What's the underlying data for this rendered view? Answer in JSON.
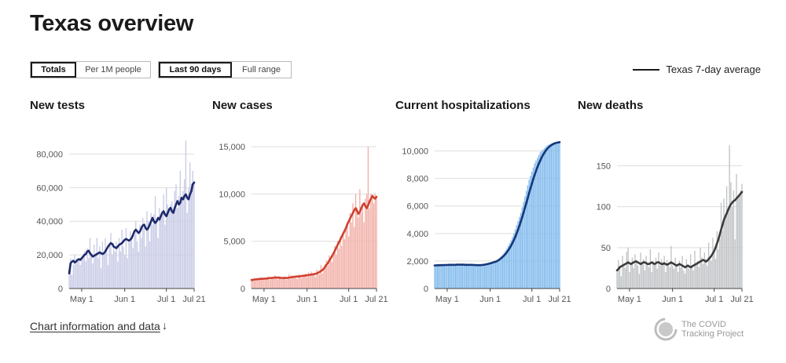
{
  "page": {
    "title": "Texas overview"
  },
  "toggles": {
    "totals": "Totals",
    "per_million": "Per 1M people",
    "last_90": "Last 90 days",
    "full_range": "Full range"
  },
  "legend": {
    "label": "Texas 7-day average",
    "color": "#1a1a1a"
  },
  "footer": {
    "link": "Chart information and data",
    "arrow": "↓"
  },
  "logo": {
    "line1": "The COVID",
    "line2": "Tracking Project"
  },
  "chart_data": [
    {
      "type": "bar",
      "title": "New tests",
      "x_start": "2020-04-22",
      "x_end": "2020-07-21",
      "x_ticks": [
        "May 1",
        "Jun 1",
        "Jul 1",
        "Jul 21"
      ],
      "ylim": [
        0,
        90000
      ],
      "y_ticks": [
        0,
        20000,
        40000,
        60000,
        80000
      ],
      "y_tick_labels": [
        "0",
        "20,000",
        "40,000",
        "60,000",
        "80,000"
      ],
      "bar_color": "#c9cbe6",
      "line_color": "#1f2a6b",
      "grid": true,
      "series": [
        {
          "kind": "daily",
          "values": [
            10000,
            18000,
            8000,
            14000,
            20000,
            15000,
            16000,
            18000,
            14000,
            17000,
            19000,
            22000,
            16000,
            24000,
            18000,
            30000,
            20000,
            15000,
            26000,
            20000,
            30000,
            18000,
            25000,
            12000,
            28000,
            22000,
            30000,
            24000,
            14000,
            26000,
            33000,
            20000,
            27000,
            22000,
            28000,
            16000,
            30000,
            22000,
            35000,
            25000,
            20000,
            36000,
            18000,
            28000,
            34000,
            30000,
            24000,
            32000,
            40000,
            28000,
            22000,
            38000,
            30000,
            42000,
            36000,
            25000,
            46000,
            40000,
            28000,
            45000,
            38000,
            44000,
            55000,
            40000,
            30000,
            48000,
            42000,
            45000,
            56000,
            38000,
            60000,
            50000,
            46000,
            50000,
            52000,
            45000,
            58000,
            62000,
            48000,
            55000,
            70000,
            52000,
            58000,
            65000,
            88000,
            45000,
            60000,
            75000,
            62000,
            70000,
            64000
          ]
        },
        {
          "kind": "7-day average",
          "values": [
            9000,
            15000,
            16000,
            16500,
            15500,
            16000,
            17000,
            17500,
            17000,
            18000,
            19000,
            20000,
            20500,
            22000,
            22500,
            21000,
            20000,
            19000,
            19500,
            20000,
            20500,
            21000,
            21500,
            21000,
            20500,
            21000,
            22000,
            23500,
            25000,
            26000,
            27000,
            26500,
            25000,
            24500,
            24000,
            25000,
            26000,
            26500,
            27000,
            28000,
            29000,
            29500,
            29000,
            28500,
            29000,
            30000,
            32000,
            34000,
            35000,
            34000,
            33000,
            34000,
            36000,
            37500,
            38000,
            36000,
            35000,
            36000,
            38000,
            40000,
            42000,
            40000,
            39000,
            40000,
            42000,
            41000,
            43000,
            45000,
            46000,
            44000,
            43000,
            45000,
            47000,
            48000,
            46000,
            45000,
            48000,
            50000,
            52000,
            50000,
            51000,
            54000,
            53000,
            55000,
            56000,
            54000,
            53000,
            56000,
            58000,
            62000,
            63000
          ]
        }
      ]
    },
    {
      "type": "bar",
      "title": "New cases",
      "x_start": "2020-04-22",
      "x_end": "2020-07-21",
      "x_ticks": [
        "May 1",
        "Jun 1",
        "Jul 1",
        "Jul 21"
      ],
      "ylim": [
        0,
        16000
      ],
      "y_ticks": [
        0,
        5000,
        10000,
        15000
      ],
      "y_tick_labels": [
        "0",
        "5,000",
        "10,000",
        "15,000"
      ],
      "bar_color": "#f2b0a8",
      "line_color": "#d0402f",
      "grid": true,
      "series": [
        {
          "kind": "daily",
          "values": [
            900,
            950,
            1100,
            800,
            1000,
            1050,
            900,
            1200,
            1000,
            1100,
            950,
            1000,
            1300,
            900,
            1100,
            1200,
            1000,
            1400,
            1100,
            950,
            1300,
            1200,
            1000,
            1100,
            1300,
            900,
            1200,
            1500,
            1000,
            1400,
            1300,
            1100,
            1200,
            1000,
            1500,
            1200,
            1100,
            1300,
            1400,
            1600,
            1200,
            1700,
            1300,
            1800,
            1400,
            1500,
            1200,
            2000,
            1700,
            1500,
            2500,
            1600,
            2200,
            2600,
            3000,
            2400,
            3500,
            3200,
            2800,
            3800,
            4500,
            3600,
            5000,
            4200,
            5500,
            4500,
            6000,
            5200,
            6500,
            7000,
            5500,
            8000,
            7000,
            9000,
            6500,
            10000,
            8500,
            7500,
            10500,
            8000,
            9000,
            7000,
            9500,
            10000,
            15000,
            8500,
            10000,
            9500,
            9000,
            10000,
            9800
          ]
        },
        {
          "kind": "7-day average",
          "values": [
            900,
            920,
            950,
            960,
            980,
            1000,
            1010,
            1020,
            1030,
            1040,
            1050,
            1060,
            1080,
            1100,
            1120,
            1130,
            1140,
            1150,
            1160,
            1150,
            1140,
            1130,
            1120,
            1110,
            1100,
            1110,
            1120,
            1150,
            1180,
            1200,
            1220,
            1240,
            1260,
            1270,
            1280,
            1300,
            1320,
            1340,
            1360,
            1380,
            1400,
            1420,
            1450,
            1470,
            1500,
            1520,
            1550,
            1600,
            1680,
            1750,
            1850,
            1950,
            2100,
            2300,
            2500,
            2700,
            2950,
            3200,
            3450,
            3700,
            4000,
            4300,
            4600,
            4900,
            5200,
            5500,
            5800,
            6100,
            6400,
            6800,
            7100,
            7400,
            7700,
            8000,
            8300,
            8500,
            8200,
            7900,
            8100,
            8500,
            8800,
            9000,
            8700,
            8500,
            8800,
            9200,
            9500,
            9800,
            9600,
            9500,
            9700
          ]
        }
      ]
    },
    {
      "type": "bar",
      "title": "Current hospitalizations",
      "x_start": "2020-04-22",
      "x_end": "2020-07-21",
      "x_ticks": [
        "May 1",
        "Jun 1",
        "Jul 1",
        "Jul 21"
      ],
      "ylim": [
        0,
        11000
      ],
      "y_ticks": [
        0,
        2000,
        4000,
        6000,
        8000,
        10000
      ],
      "y_tick_labels": [
        "0",
        "2,000",
        "4,000",
        "6,000",
        "8,000",
        "10,000"
      ],
      "bar_color": "#7fb9ec",
      "line_color": "#15367a",
      "grid": true,
      "series": [
        {
          "kind": "daily",
          "values": [
            1700,
            1650,
            1680,
            1700,
            1720,
            1680,
            1700,
            1750,
            1720,
            1700,
            1730,
            1760,
            1740,
            1720,
            1700,
            1730,
            1750,
            1780,
            1760,
            1740,
            1720,
            1700,
            1680,
            1710,
            1740,
            1760,
            1750,
            1730,
            1710,
            1700,
            1690,
            1680,
            1700,
            1720,
            1740,
            1760,
            1780,
            1800,
            1820,
            1850,
            1880,
            1920,
            1950,
            1980,
            2000,
            2050,
            2150,
            2250,
            2350,
            2450,
            2600,
            2750,
            2900,
            3100,
            3300,
            3500,
            3750,
            4000,
            4300,
            4600,
            4900,
            5200,
            5500,
            5900,
            6300,
            6700,
            7100,
            7500,
            7900,
            8200,
            8500,
            8800,
            9100,
            9300,
            9500,
            9700,
            9900,
            10000,
            10100,
            10200,
            10300,
            10400,
            10450,
            10500,
            10550,
            10600,
            10620,
            10640,
            10650,
            10660,
            10700
          ]
        },
        {
          "kind": "7-day average",
          "values": [
            1680,
            1680,
            1690,
            1690,
            1700,
            1700,
            1700,
            1710,
            1710,
            1710,
            1720,
            1720,
            1720,
            1720,
            1720,
            1720,
            1730,
            1730,
            1730,
            1730,
            1730,
            1730,
            1720,
            1720,
            1720,
            1720,
            1720,
            1720,
            1710,
            1710,
            1700,
            1700,
            1700,
            1700,
            1710,
            1720,
            1740,
            1760,
            1780,
            1800,
            1830,
            1860,
            1890,
            1920,
            1950,
            2000,
            2060,
            2130,
            2210,
            2300,
            2400,
            2510,
            2640,
            2780,
            2940,
            3110,
            3300,
            3510,
            3740,
            3990,
            4260,
            4550,
            4860,
            5180,
            5510,
            5860,
            6210,
            6570,
            6930,
            7280,
            7620,
            7950,
            8260,
            8550,
            8820,
            9070,
            9300,
            9510,
            9700,
            9870,
            10020,
            10150,
            10260,
            10350,
            10420,
            10480,
            10530,
            10570,
            10600,
            10620,
            10640
          ]
        }
      ]
    },
    {
      "type": "bar",
      "title": "New deaths",
      "x_start": "2020-04-22",
      "x_end": "2020-07-21",
      "x_ticks": [
        "May 1",
        "Jun 1",
        "Jul 1",
        "Jul 21"
      ],
      "ylim": [
        0,
        185
      ],
      "y_ticks": [
        0,
        50,
        100,
        150
      ],
      "y_tick_labels": [
        "0",
        "50",
        "100",
        "150"
      ],
      "bar_color": "#c0c3c6",
      "line_color": "#3b3b3b",
      "grid": true,
      "series": [
        {
          "kind": "daily",
          "values": [
            20,
            35,
            28,
            15,
            40,
            30,
            25,
            45,
            50,
            20,
            30,
            38,
            25,
            42,
            35,
            28,
            18,
            44,
            30,
            36,
            22,
            40,
            32,
            26,
            48,
            20,
            34,
            30,
            38,
            24,
            44,
            28,
            36,
            32,
            40,
            20,
            35,
            30,
            26,
            52,
            28,
            24,
            38,
            30,
            20,
            34,
            26,
            40,
            22,
            18,
            36,
            30,
            24,
            42,
            28,
            22,
            46,
            30,
            34,
            26,
            50,
            38,
            30,
            44,
            36,
            28,
            56,
            40,
            34,
            62,
            44,
            36,
            70,
            48,
            60,
            105,
            70,
            110,
            90,
            125,
            95,
            175,
            130,
            100,
            120,
            60,
            140,
            110,
            115,
            120,
            128
          ]
        },
        {
          "kind": "7-day average",
          "values": [
            22,
            24,
            26,
            27,
            28,
            29,
            30,
            31,
            32,
            31,
            30,
            31,
            32,
            33,
            33,
            32,
            31,
            30,
            31,
            32,
            32,
            31,
            30,
            30,
            31,
            32,
            31,
            30,
            31,
            32,
            32,
            31,
            30,
            30,
            31,
            30,
            29,
            30,
            31,
            32,
            31,
            30,
            29,
            28,
            29,
            30,
            29,
            28,
            27,
            26,
            27,
            28,
            27,
            26,
            27,
            28,
            29,
            30,
            31,
            32,
            33,
            34,
            35,
            34,
            33,
            34,
            36,
            38,
            40,
            43,
            46,
            50,
            55,
            60,
            66,
            72,
            78,
            84,
            88,
            92,
            96,
            100,
            103,
            105,
            107,
            108,
            110,
            112,
            114,
            116,
            118
          ]
        }
      ]
    }
  ]
}
